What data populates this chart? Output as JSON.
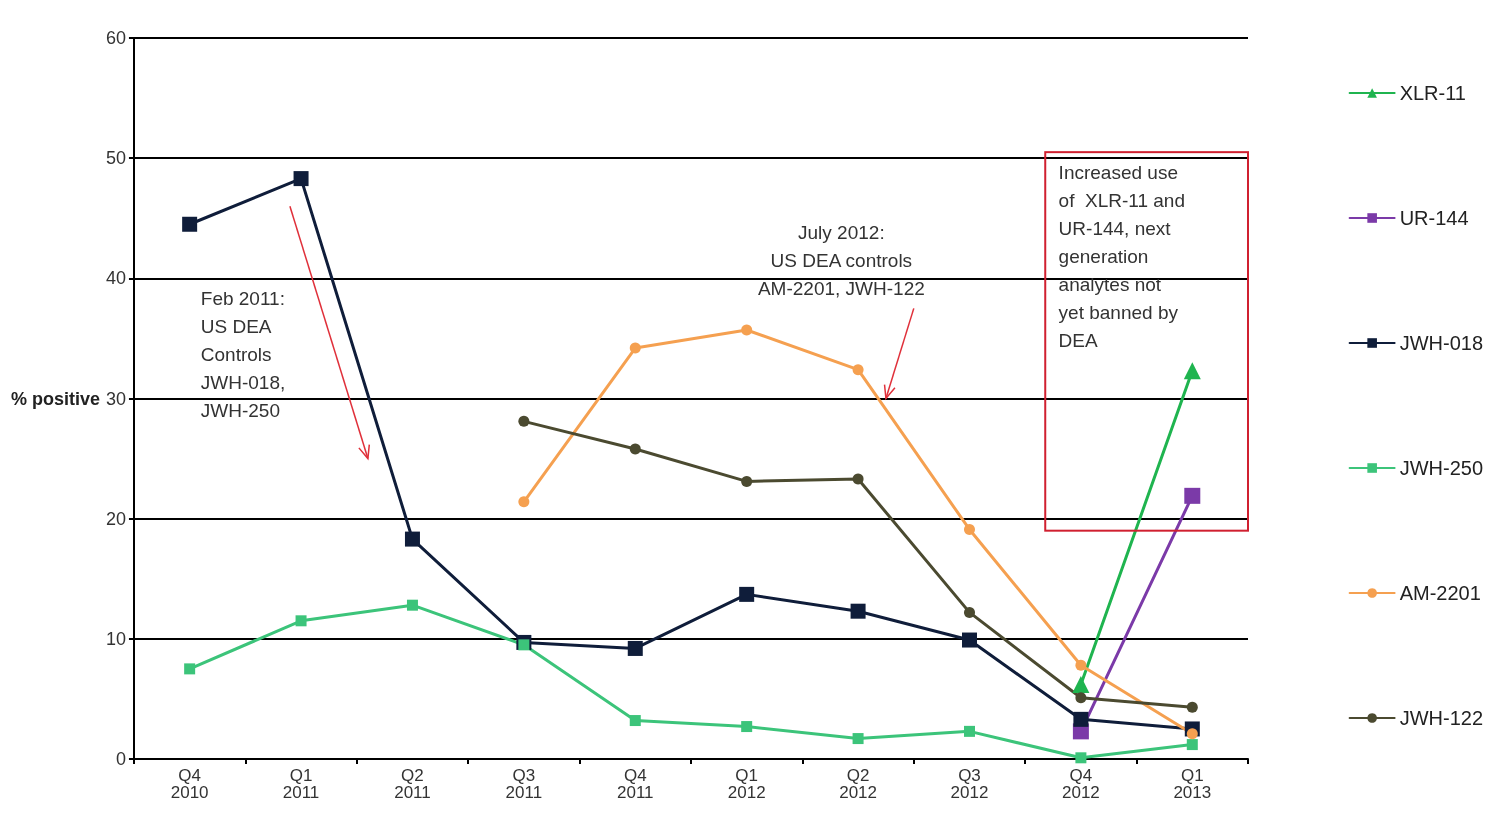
{
  "chart_data": {
    "type": "line",
    "categories": [
      "Q4\n2010",
      "Q1\n2011",
      "Q2\n2011",
      "Q3\n2011",
      "Q4\n2011",
      "Q1\n2012",
      "Q2\n2012",
      "Q3\n2012",
      "Q4\n2012",
      "Q1\n2013"
    ],
    "ylabel": "% positive",
    "ylim": [
      0,
      60
    ],
    "yticks": [
      0,
      10,
      20,
      30,
      40,
      50,
      60
    ],
    "grid": "y",
    "legend": "right",
    "series": [
      {
        "name": "XLR-11",
        "color": "#1fb44f",
        "marker": "triangle",
        "values": [
          null,
          null,
          null,
          null,
          null,
          null,
          null,
          null,
          6.2,
          32.3
        ]
      },
      {
        "name": "UR-144",
        "color": "#7b3aa8",
        "marker": "square",
        "values": [
          null,
          null,
          null,
          null,
          null,
          null,
          null,
          null,
          2.3,
          21.9
        ]
      },
      {
        "name": "JWH-018",
        "color": "#0f1d3a",
        "marker": "square",
        "values": [
          44.5,
          48.3,
          18.3,
          9.7,
          9.2,
          13.7,
          12.3,
          9.9,
          3.3,
          2.5
        ]
      },
      {
        "name": "JWH-250",
        "color": "#3cc47a",
        "marker": "square",
        "values": [
          7.5,
          11.5,
          12.8,
          9.5,
          3.2,
          2.7,
          1.7,
          2.3,
          0.1,
          1.2
        ]
      },
      {
        "name": "AM-2201",
        "color": "#f5a050",
        "marker": "circle",
        "values": [
          null,
          null,
          null,
          21.4,
          34.2,
          35.7,
          32.4,
          19.1,
          7.8,
          2.1
        ]
      },
      {
        "name": "JWH-122",
        "color": "#4b4a30",
        "marker": "circle",
        "values": [
          null,
          null,
          null,
          28.1,
          25.8,
          23.1,
          23.3,
          12.2,
          5.1,
          4.3
        ]
      }
    ],
    "annotations": [
      "Feb 2011:\nUS DEA\nControls\nJWH-018,\nJWH-250",
      "July 2012:\nUS DEA controls\nAM-2201, JWH-122",
      "Increased use\nof  XLR-11 and\nUR-144, next\ngeneration\nanalytes not\nyet banned by\nDEA"
    ]
  }
}
